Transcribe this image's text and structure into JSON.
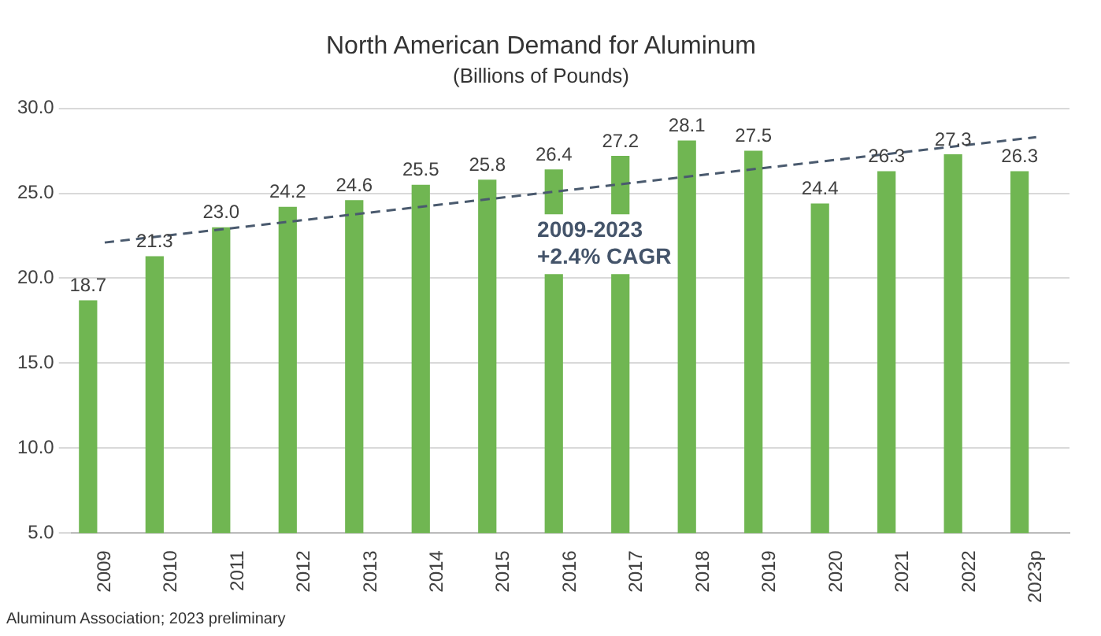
{
  "chart_data": {
    "type": "bar",
    "title": "North American Demand for Aluminum",
    "subtitle": "(Billions of Pounds)",
    "categories": [
      "2009",
      "2010",
      "2011",
      "2012",
      "2013",
      "2014",
      "2015",
      "2016",
      "2017",
      "2018",
      "2019",
      "2020",
      "2021",
      "2022",
      "2023p"
    ],
    "series": [
      {
        "color": "#70b652",
        "values": [
          18.7,
          21.3,
          23.0,
          24.2,
          24.6,
          25.5,
          25.8,
          26.4,
          27.2,
          28.1,
          27.5,
          24.4,
          26.3,
          27.3,
          26.3
        ],
        "value_labels": [
          "18.7",
          "21.3",
          "23.0",
          "24.2",
          "24.6",
          "25.5",
          "25.8",
          "26.4",
          "27.2",
          "28.1",
          "27.5",
          "24.4",
          "26.3",
          "27.3",
          "26.3"
        ]
      },
      {
        "type": "line",
        "color": "#4a5a6e",
        "line_style": "dashed",
        "marker": "none",
        "values": [
          22.1,
          null,
          null,
          null,
          null,
          null,
          null,
          null,
          null,
          null,
          null,
          null,
          null,
          null,
          28.3
        ]
      }
    ],
    "ylim": [
      5,
      30
    ],
    "yticks": [
      {
        "value": 5,
        "label": "5.0"
      },
      {
        "value": 10,
        "label": "10.0"
      },
      {
        "value": 15,
        "label": "15.0"
      },
      {
        "value": 20,
        "label": "20.0"
      },
      {
        "value": 25,
        "label": "25.0"
      },
      {
        "value": 30,
        "label": "30.0"
      }
    ],
    "grid": "y",
    "legend": false,
    "annotations": [
      {
        "text": "2009-2023\n+2.4% CAGR",
        "x": "2015",
        "y": 22
      },
      "Aluminum Association; 2023 preliminary"
    ]
  }
}
